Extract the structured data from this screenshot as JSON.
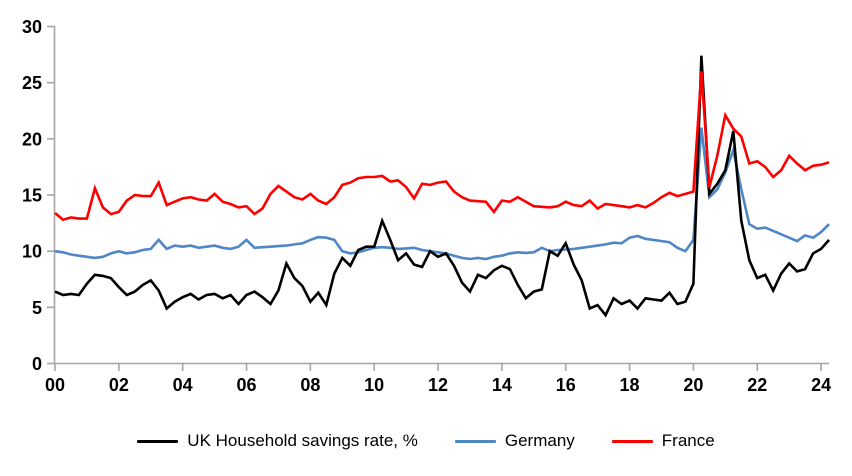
{
  "chart_data": {
    "type": "line",
    "title": "",
    "xlabel": "",
    "ylabel": "",
    "grid": false,
    "legend_position": "bottom",
    "axis_color": "#a6a6a6",
    "background": "#ffffff",
    "x_start": 2000,
    "x_step_years": 0.25,
    "x_axis": {
      "tick_years": [
        2000,
        2002,
        2004,
        2006,
        2008,
        2010,
        2012,
        2014,
        2016,
        2018,
        2020,
        2022,
        2024
      ],
      "tick_labels": [
        "00",
        "02",
        "04",
        "06",
        "08",
        "10",
        "12",
        "14",
        "16",
        "18",
        "20",
        "22",
        "24"
      ]
    },
    "y_axis": {
      "min": 0,
      "max": 30,
      "ticks": [
        0,
        5,
        10,
        15,
        20,
        25,
        30
      ]
    },
    "series": [
      {
        "name": "UK Household savings rate, %",
        "color": "#000000",
        "values": [
          6.4,
          6.1,
          6.2,
          6.1,
          7.1,
          7.9,
          7.8,
          7.6,
          6.8,
          6.1,
          6.4,
          7.0,
          7.4,
          6.5,
          4.9,
          5.5,
          5.9,
          6.2,
          5.7,
          6.1,
          6.2,
          5.8,
          6.1,
          5.3,
          6.1,
          6.4,
          5.9,
          5.3,
          6.5,
          8.9,
          7.6,
          6.9,
          5.5,
          6.3,
          5.2,
          8.0,
          9.4,
          8.7,
          10.1,
          10.4,
          10.4,
          12.7,
          11.0,
          9.2,
          9.8,
          8.8,
          8.6,
          10.0,
          9.5,
          9.8,
          8.7,
          7.2,
          6.4,
          7.9,
          7.6,
          8.3,
          8.7,
          8.4,
          7.0,
          5.8,
          6.4,
          6.6,
          10.0,
          9.6,
          10.7,
          8.8,
          7.4,
          4.9,
          5.2,
          4.3,
          5.8,
          5.3,
          5.6,
          4.9,
          5.8,
          5.7,
          5.6,
          6.3,
          5.3,
          5.5,
          7.1,
          27.4,
          15.1,
          16.0,
          17.2,
          20.7,
          12.7,
          9.2,
          7.6,
          7.9,
          6.5,
          8.0,
          8.9,
          8.2,
          8.4,
          9.8,
          10.2,
          11.0
        ]
      },
      {
        "name": "Germany",
        "color": "#4f86c6",
        "values": [
          10.0,
          9.9,
          9.7,
          9.6,
          9.5,
          9.4,
          9.5,
          9.8,
          10.0,
          9.8,
          9.9,
          10.1,
          10.2,
          11.0,
          10.2,
          10.5,
          10.4,
          10.5,
          10.3,
          10.4,
          10.5,
          10.3,
          10.2,
          10.4,
          11.0,
          10.3,
          10.35,
          10.4,
          10.45,
          10.5,
          10.6,
          10.7,
          11.0,
          11.25,
          11.2,
          11.0,
          10.0,
          9.8,
          9.9,
          10.1,
          10.3,
          10.35,
          10.3,
          10.2,
          10.25,
          10.3,
          10.1,
          10.0,
          9.9,
          9.8,
          9.6,
          9.4,
          9.3,
          9.4,
          9.3,
          9.5,
          9.6,
          9.8,
          9.9,
          9.85,
          9.9,
          10.3,
          10.0,
          10.1,
          10.15,
          10.2,
          10.3,
          10.4,
          10.5,
          10.6,
          10.75,
          10.7,
          11.2,
          11.35,
          11.1,
          11.0,
          10.9,
          10.8,
          10.3,
          10.0,
          11.0,
          21.0,
          14.8,
          15.5,
          17.0,
          19.0,
          15.5,
          12.4,
          12.0,
          12.1,
          11.8,
          11.5,
          11.2,
          10.9,
          11.4,
          11.2,
          11.7,
          12.4
        ]
      },
      {
        "name": "France",
        "color": "#fe0000",
        "values": [
          13.4,
          12.8,
          13.0,
          12.9,
          12.9,
          15.6,
          13.9,
          13.3,
          13.5,
          14.5,
          15.0,
          14.9,
          14.9,
          16.1,
          14.1,
          14.4,
          14.7,
          14.8,
          14.6,
          14.5,
          15.1,
          14.4,
          14.2,
          13.9,
          14.0,
          13.3,
          13.8,
          15.1,
          15.8,
          15.3,
          14.8,
          14.6,
          15.1,
          14.5,
          14.2,
          14.8,
          15.9,
          16.1,
          16.5,
          16.6,
          16.6,
          16.7,
          16.2,
          16.3,
          15.7,
          14.7,
          16.0,
          15.9,
          16.1,
          16.2,
          15.3,
          14.8,
          14.5,
          14.45,
          14.4,
          13.5,
          14.5,
          14.4,
          14.8,
          14.4,
          14.0,
          13.95,
          13.9,
          14.0,
          14.4,
          14.1,
          14.0,
          14.5,
          13.8,
          14.2,
          14.1,
          14.0,
          13.9,
          14.1,
          13.9,
          14.3,
          14.8,
          15.2,
          14.9,
          15.1,
          15.3,
          26.0,
          15.7,
          18.5,
          22.1,
          20.9,
          20.2,
          17.8,
          18.0,
          17.5,
          16.6,
          17.2,
          18.5,
          17.8,
          17.2,
          17.6,
          17.7,
          17.9
        ]
      }
    ]
  }
}
